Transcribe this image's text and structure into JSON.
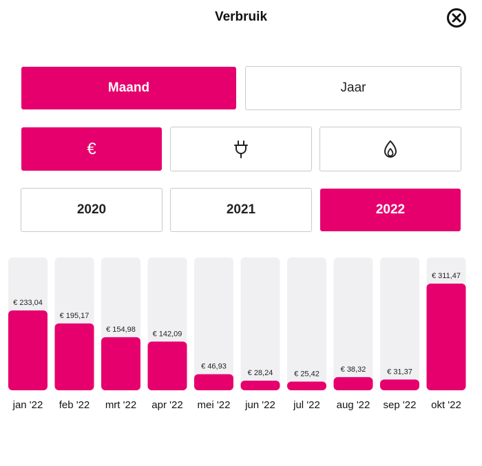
{
  "header": {
    "title": "Verbruik",
    "close_icon": "close-circle-icon"
  },
  "period_toggle": {
    "options": [
      {
        "label": "Maand",
        "active": true
      },
      {
        "label": "Jaar",
        "active": false
      }
    ]
  },
  "type_toggle": {
    "options": [
      {
        "label": "€",
        "icon": "euro-icon",
        "active": true
      },
      {
        "icon": "electricity-plug-icon",
        "active": false
      },
      {
        "icon": "gas-flame-icon",
        "active": false
      }
    ]
  },
  "year_toggle": {
    "options": [
      {
        "label": "2020",
        "active": false
      },
      {
        "label": "2021",
        "active": false
      },
      {
        "label": "2022",
        "active": true
      }
    ]
  },
  "colors": {
    "accent": "#e6006d",
    "track": "#f0f0f2",
    "border": "#c9c9c9"
  },
  "chart_data": {
    "type": "bar",
    "categories": [
      "jan '22",
      "feb '22",
      "mrt '22",
      "apr '22",
      "mei '22",
      "jun '22",
      "jul '22",
      "aug '22",
      "sep '22",
      "okt '22"
    ],
    "values": [
      233.04,
      195.17,
      154.98,
      142.09,
      46.93,
      28.24,
      25.42,
      38.32,
      31.37,
      311.47
    ],
    "labels": [
      "€ 233,04",
      "€ 195,17",
      "€ 154,98",
      "€ 142,09",
      "€ 46,93",
      "€ 28,24",
      "€ 25,42",
      "€ 38,32",
      "€ 31,37",
      "€ 311,47"
    ],
    "ylim": [
      0,
      311.47
    ],
    "grid": false,
    "legend": "none"
  }
}
